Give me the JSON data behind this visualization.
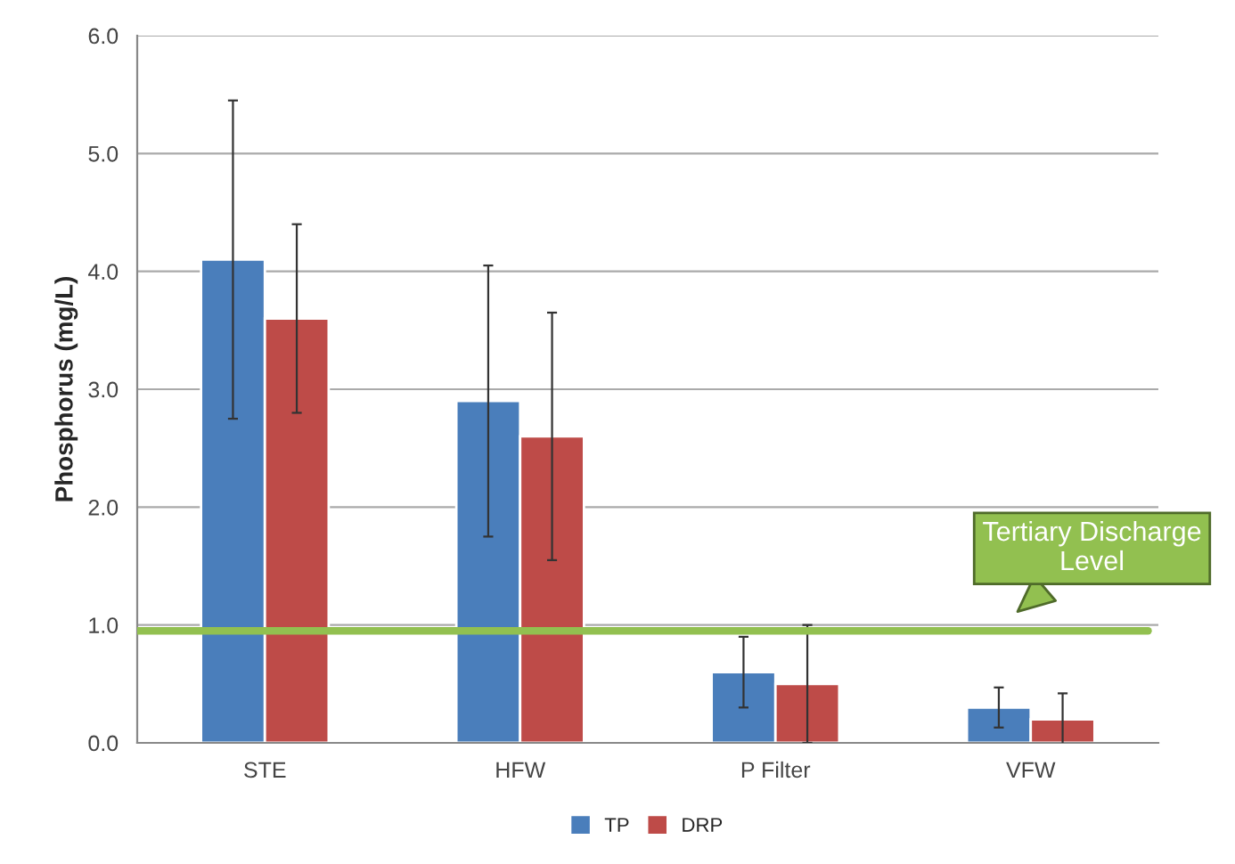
{
  "chart_data": {
    "type": "bar",
    "ylabel": "Phosphorus (mg/L)",
    "categories": [
      "STE",
      "HFW",
      "P Filter",
      "VFW"
    ],
    "series": [
      {
        "name": "TP",
        "color": "#4a7ebb",
        "values": [
          4.1,
          2.9,
          0.6,
          0.3
        ],
        "errors": [
          1.35,
          1.15,
          0.3,
          0.17
        ]
      },
      {
        "name": "DRP",
        "color": "#be4b48",
        "values": [
          3.6,
          2.6,
          0.5,
          0.2
        ],
        "errors": [
          0.8,
          1.05,
          0.5,
          0.22
        ]
      }
    ],
    "ylim": [
      0,
      6
    ],
    "yticks": [
      {
        "value": 0,
        "label": "0.0"
      },
      {
        "value": 1,
        "label": "1.0"
      },
      {
        "value": 2,
        "label": "2.0"
      },
      {
        "value": 3,
        "label": "3.0"
      },
      {
        "value": 4,
        "label": "4.0"
      },
      {
        "value": 5,
        "label": "5.0"
      },
      {
        "value": 6,
        "label": "6.0"
      }
    ],
    "ref_lines": [
      {
        "axis": "y",
        "value": 0.95,
        "label": "Tertiary Discharge Level",
        "color": "#92c050"
      }
    ],
    "grid": "y",
    "legend": "bottom"
  }
}
